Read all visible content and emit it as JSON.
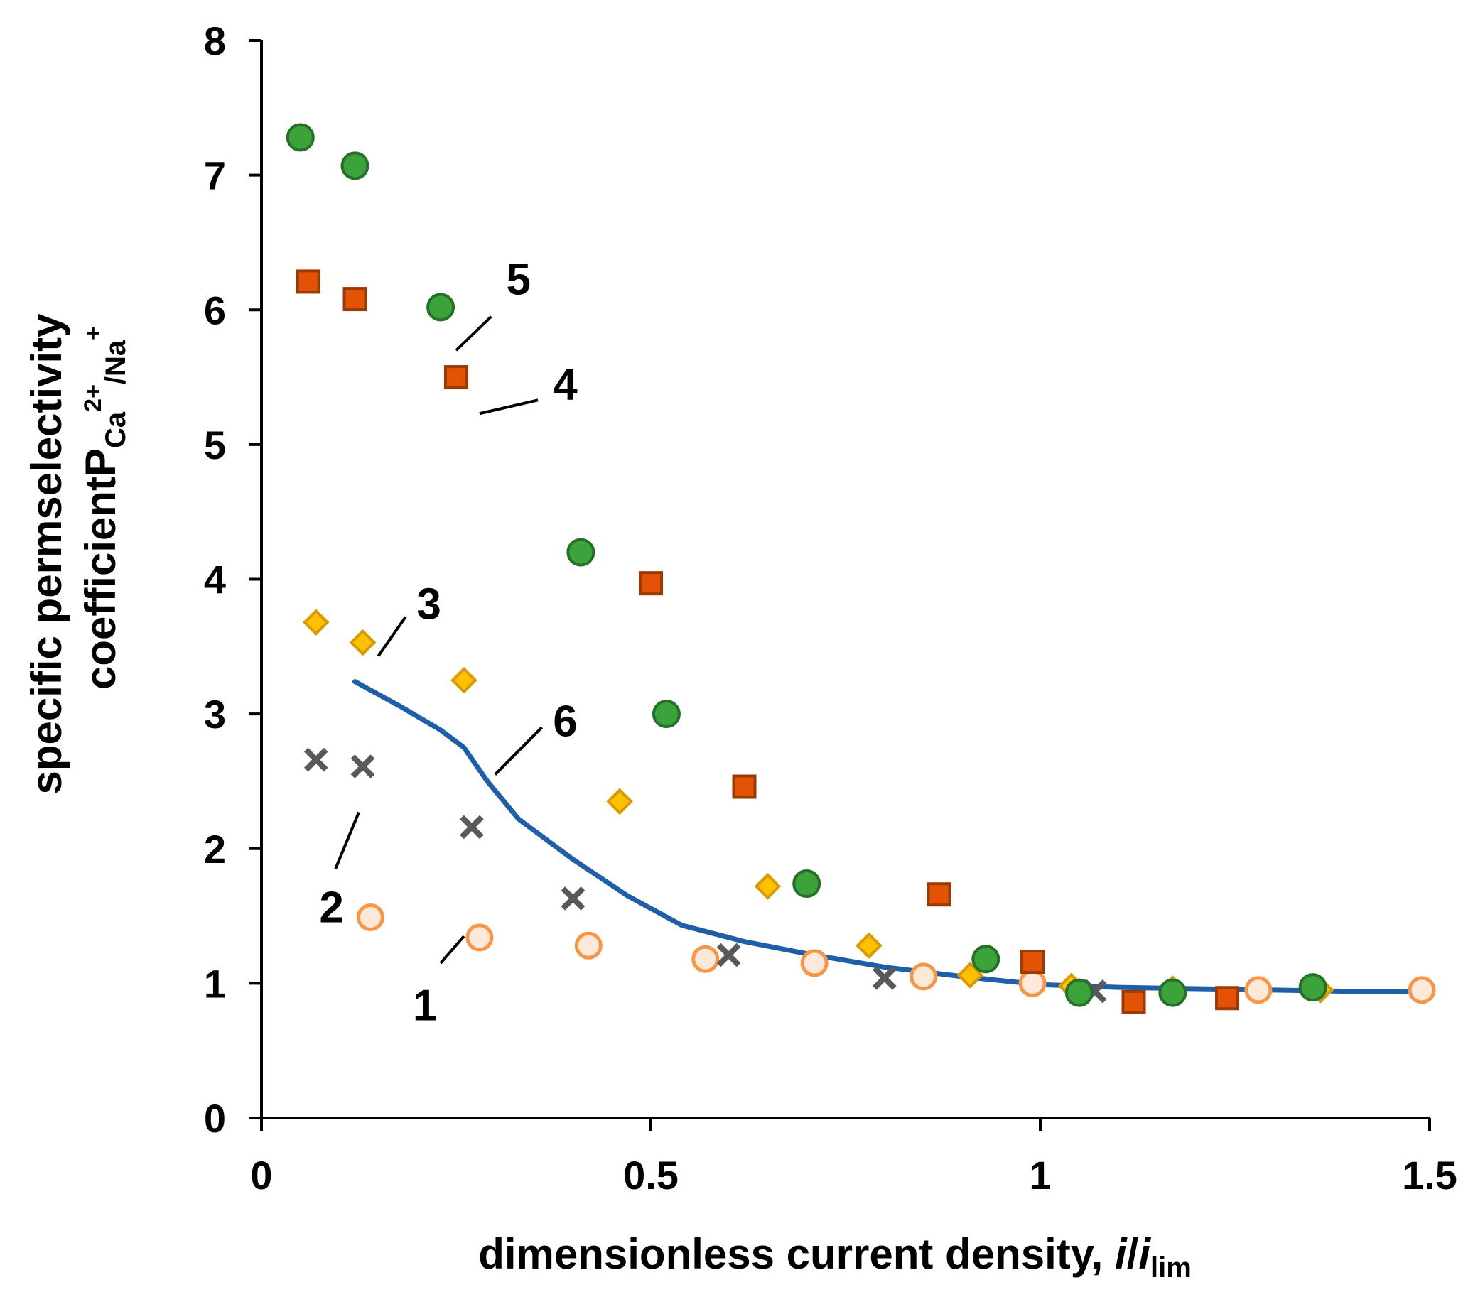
{
  "chart_data": {
    "type": "scatter",
    "xlabel": {
      "main": "dimensionless current density, ",
      "italic_i": "i",
      "slash": "/",
      "italic_i2": "i",
      "sub": "lim"
    },
    "ylabel": {
      "line1": "specific  permselectivity",
      "line2": "coefficient",
      "P": "P",
      "sub1": "Ca",
      "sup": "2+",
      "sub2": "/Na",
      "sup2": "+"
    },
    "xlim": [
      0,
      1.5
    ],
    "ylim": [
      0,
      8
    ],
    "xticks": [
      {
        "v": 0,
        "t": "0"
      },
      {
        "v": 0.5,
        "t": "0.5"
      },
      {
        "v": 1,
        "t": "1"
      },
      {
        "v": 1.5,
        "t": "1.5"
      }
    ],
    "yticks": [
      {
        "v": 0,
        "t": "0"
      },
      {
        "v": 1,
        "t": "1"
      },
      {
        "v": 2,
        "t": "2"
      },
      {
        "v": 3,
        "t": "3"
      },
      {
        "v": 4,
        "t": "4"
      },
      {
        "v": 5,
        "t": "5"
      },
      {
        "v": 6,
        "t": "6"
      },
      {
        "v": 7,
        "t": "7"
      },
      {
        "v": 8,
        "t": "8"
      }
    ],
    "colors": {
      "s1_fill": "#fde9d9",
      "s1_stroke": "#f79646",
      "s2": "#595959",
      "s3_fill": "#ffc000",
      "s3_stroke": "#d99a00",
      "s4_fill": "#e35205",
      "s4_stroke": "#9c3a03",
      "s5_fill": "#3ca33a",
      "s5_stroke": "#27702a",
      "s6": "#1f5fa8"
    },
    "series": [
      {
        "name": "1",
        "marker": "circle-open",
        "x": [
          0.14,
          0.28,
          0.42,
          0.57,
          0.71,
          0.85,
          0.99,
          1.28,
          1.49
        ],
        "y": [
          1.49,
          1.34,
          1.28,
          1.18,
          1.15,
          1.05,
          1.0,
          0.95,
          0.95
        ]
      },
      {
        "name": "2",
        "marker": "x",
        "x": [
          0.07,
          0.13,
          0.27,
          0.4,
          0.6,
          0.8,
          1.07
        ],
        "y": [
          2.66,
          2.61,
          2.16,
          1.63,
          1.21,
          1.04,
          0.94
        ]
      },
      {
        "name": "3",
        "marker": "diamond",
        "x": [
          0.07,
          0.13,
          0.26,
          0.46,
          0.65,
          0.78,
          0.91,
          1.04,
          1.17,
          1.36
        ],
        "y": [
          3.68,
          3.53,
          3.25,
          2.35,
          1.72,
          1.28,
          1.06,
          0.98,
          0.96,
          0.95
        ]
      },
      {
        "name": "4",
        "marker": "square",
        "x": [
          0.06,
          0.12,
          0.25,
          0.5,
          0.62,
          0.87,
          0.99,
          1.12,
          1.24
        ],
        "y": [
          6.21,
          6.08,
          5.5,
          3.97,
          2.46,
          1.66,
          1.16,
          0.86,
          0.89
        ]
      },
      {
        "name": "5",
        "marker": "circle-filled",
        "x": [
          0.05,
          0.12,
          0.23,
          0.41,
          0.52,
          0.7,
          0.93,
          1.05,
          1.17,
          1.35
        ],
        "y": [
          7.28,
          7.07,
          6.02,
          4.2,
          3.0,
          1.74,
          1.18,
          0.93,
          0.93,
          0.97
        ]
      },
      {
        "name": "6",
        "marker": "line",
        "x": [
          0.12,
          0.18,
          0.23,
          0.26,
          0.29,
          0.33,
          0.4,
          0.47,
          0.54,
          0.62,
          0.7,
          0.8,
          0.9,
          1.0,
          1.1,
          1.2,
          1.3,
          1.4,
          1.48
        ],
        "y": [
          3.24,
          3.05,
          2.88,
          2.75,
          2.5,
          2.22,
          1.92,
          1.65,
          1.43,
          1.31,
          1.22,
          1.12,
          1.05,
          0.99,
          0.97,
          0.96,
          0.95,
          0.94,
          0.94
        ]
      }
    ],
    "callouts": [
      {
        "label": "1",
        "at": [
          0.21,
          0.84
        ],
        "line": [
          [
            0.23,
            1.15
          ],
          [
            0.26,
            1.35
          ]
        ]
      },
      {
        "label": "2",
        "at": [
          0.09,
          1.57
        ],
        "line": [
          [
            0.095,
            1.85
          ],
          [
            0.125,
            2.27
          ]
        ]
      },
      {
        "label": "3",
        "at": [
          0.215,
          3.82
        ],
        "line": [
          [
            0.15,
            3.43
          ],
          [
            0.185,
            3.72
          ]
        ]
      },
      {
        "label": "4",
        "at": [
          0.39,
          5.45
        ],
        "line": [
          [
            0.28,
            5.23
          ],
          [
            0.355,
            5.33
          ]
        ]
      },
      {
        "label": "5",
        "at": [
          0.33,
          6.23
        ],
        "line": [
          [
            0.25,
            5.7
          ],
          [
            0.295,
            5.95
          ]
        ]
      },
      {
        "label": "6",
        "at": [
          0.39,
          2.95
        ],
        "line": [
          [
            0.3,
            2.55
          ],
          [
            0.36,
            2.9
          ]
        ]
      }
    ]
  }
}
